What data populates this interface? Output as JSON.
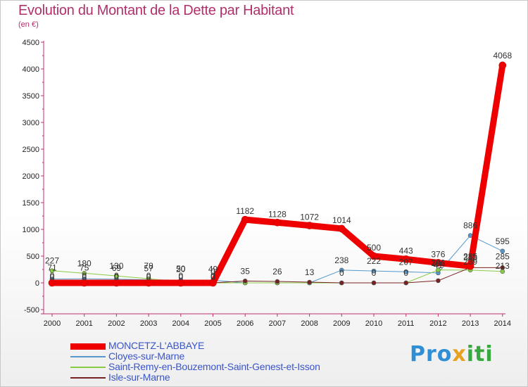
{
  "title": "Evolution du Montant de la Dette par Habitant",
  "subtitle": "(en €)",
  "logo": {
    "text": "Proxiti",
    "colors": [
      "#2f8fd6",
      "#e8a020",
      "#3aa840"
    ]
  },
  "chart_data": {
    "type": "line",
    "title": "Evolution du Montant de la Dette par Habitant",
    "ylabel": "(en €)",
    "ylim": [
      -500,
      4500
    ],
    "ytick_step": 500,
    "grid": false,
    "legend_position": "bottom-left",
    "x": [
      "2000",
      "2001",
      "2002",
      "2003",
      "2004",
      "2005",
      "2006",
      "2007",
      "2008",
      "2009",
      "2010",
      "2011",
      "2012",
      "2013",
      "2014"
    ],
    "series": [
      {
        "name": "MONCETZ-L'ABBAYE",
        "color": "#ee0000",
        "width": 9,
        "values": [
          0,
          0,
          0,
          0,
          0,
          0,
          1182,
          1128,
          1072,
          1014,
          500,
          443,
          376,
          313,
          4068
        ],
        "labels": [
          "0",
          "0",
          "0",
          "0",
          "0",
          "0",
          "1182",
          "1128",
          "1072",
          "1014",
          "500",
          "443",
          "376",
          "313",
          "4068"
        ],
        "label_dy": [
          -4,
          -4,
          -4,
          -4,
          -4,
          -4,
          -8,
          -8,
          -8,
          -8,
          -8,
          -8,
          -8,
          -8,
          -10
        ]
      },
      {
        "name": "Cloyes-sur-Marne",
        "color": "#5599cc",
        "width": 1,
        "values": [
          71,
          75,
          69,
          57,
          50,
          49,
          0,
          0,
          0,
          238,
          222,
          207,
          186,
          886,
          595
        ],
        "labels": [
          "71",
          "75",
          "69",
          "57",
          "50",
          "49",
          "",
          "",
          "",
          "238",
          "222",
          "207",
          "186",
          "886",
          "595"
        ],
        "label_dy": [
          -12,
          -12,
          -12,
          -12,
          -12,
          -12,
          0,
          0,
          0,
          -10,
          -10,
          -10,
          -10,
          -10,
          -10
        ]
      },
      {
        "name": "Saint-Remy-en-Bouzemont-Saint-Genest-et-Isson",
        "color": "#88cc44",
        "width": 1,
        "values": [
          227,
          180,
          130,
          78,
          20,
          0,
          0,
          0,
          0,
          0,
          0,
          0,
          241,
          239,
          213
        ],
        "labels": [
          "227",
          "180",
          "130",
          "78",
          "20",
          "0",
          "",
          "",
          "",
          "",
          "",
          "",
          "241",
          "239",
          "213"
        ],
        "label_dy": [
          -10,
          -10,
          -10,
          -14,
          -14,
          -12,
          0,
          0,
          0,
          0,
          0,
          0,
          -6,
          -8,
          -4
        ]
      },
      {
        "name": "Isle-sur-Marne",
        "color": "#772222",
        "width": 1,
        "values": [
          0,
          0,
          0,
          0,
          0,
          0,
          35,
          26,
          13,
          0,
          0,
          0,
          41,
          285,
          285
        ],
        "labels": [
          "0",
          "0",
          "0",
          "0",
          "0",
          "0",
          "35",
          "26",
          "13",
          "0",
          "0",
          "0",
          "41",
          "285",
          "285"
        ],
        "label_dy": [
          -6,
          -6,
          -6,
          -6,
          -6,
          -6,
          -10,
          -10,
          -10,
          -10,
          -10,
          -10,
          -18,
          -12,
          -12
        ]
      }
    ]
  }
}
